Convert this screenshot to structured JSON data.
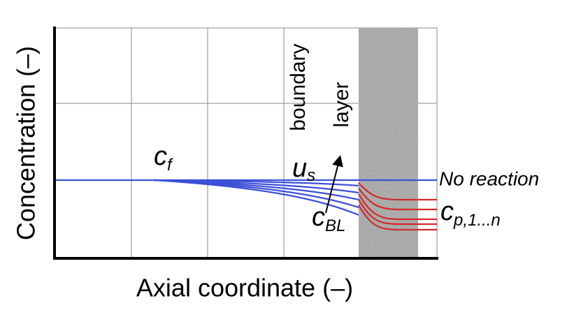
{
  "axes": {
    "y_title": "Concentration (–)",
    "x_title": "Axial coordinate (–)"
  },
  "labels": {
    "feed": {
      "symbol": "c",
      "subscript": "f"
    },
    "boundary_layer": [
      "boundary",
      "layer"
    ],
    "velocity": {
      "symbol": "u",
      "subscript": "s"
    },
    "boundary_conc": {
      "symbol": "c",
      "subscript": "BL"
    },
    "no_reaction": "No reaction",
    "permeate": {
      "symbol": "c",
      "subscript": "p,1...n"
    }
  }
}
